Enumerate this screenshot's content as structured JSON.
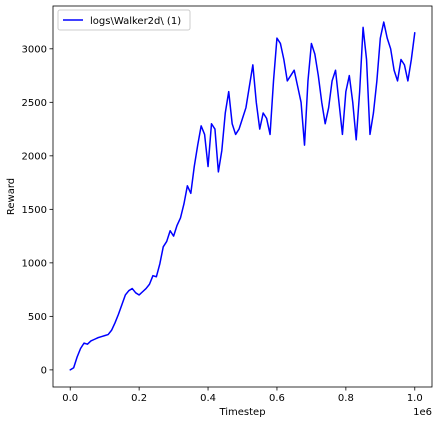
{
  "chart_data": {
    "type": "line",
    "title": "",
    "xlabel": "Timestep",
    "ylabel": "Reward",
    "x_offset_label": "1e6",
    "xlim": [
      -0.05,
      1.05
    ],
    "ylim": [
      -160,
      3400
    ],
    "xticks": [
      0.0,
      0.2,
      0.4,
      0.6,
      0.8,
      1.0
    ],
    "xtick_labels": [
      "0.0",
      "0.2",
      "0.4",
      "0.6",
      "0.8",
      "1.0"
    ],
    "yticks": [
      0,
      500,
      1000,
      1500,
      2000,
      2500,
      3000
    ],
    "ytick_labels": [
      "0",
      "500",
      "1000",
      "1500",
      "2000",
      "2500",
      "3000"
    ],
    "grid": false,
    "legend_position": "top-left",
    "series": [
      {
        "name": "logs\\Walker2d\\ (1)",
        "color": "#0000ff",
        "x": [
          0.0,
          0.01,
          0.02,
          0.03,
          0.04,
          0.05,
          0.06,
          0.07,
          0.08,
          0.09,
          0.1,
          0.11,
          0.12,
          0.13,
          0.14,
          0.15,
          0.16,
          0.17,
          0.18,
          0.19,
          0.2,
          0.21,
          0.22,
          0.23,
          0.24,
          0.25,
          0.26,
          0.27,
          0.28,
          0.29,
          0.3,
          0.31,
          0.32,
          0.33,
          0.34,
          0.35,
          0.36,
          0.37,
          0.38,
          0.39,
          0.4,
          0.41,
          0.42,
          0.43,
          0.44,
          0.45,
          0.46,
          0.47,
          0.48,
          0.49,
          0.5,
          0.51,
          0.52,
          0.53,
          0.54,
          0.55,
          0.56,
          0.57,
          0.58,
          0.59,
          0.6,
          0.61,
          0.62,
          0.63,
          0.64,
          0.65,
          0.66,
          0.67,
          0.68,
          0.69,
          0.7,
          0.71,
          0.72,
          0.73,
          0.74,
          0.75,
          0.76,
          0.77,
          0.78,
          0.79,
          0.8,
          0.81,
          0.82,
          0.83,
          0.84,
          0.85,
          0.86,
          0.87,
          0.88,
          0.89,
          0.9,
          0.91,
          0.92,
          0.93,
          0.94,
          0.95,
          0.96,
          0.97,
          0.98,
          0.99,
          1.0
        ],
        "y": [
          0,
          20,
          120,
          200,
          250,
          240,
          270,
          285,
          300,
          310,
          320,
          330,
          370,
          440,
          520,
          610,
          700,
          740,
          760,
          720,
          700,
          730,
          760,
          800,
          880,
          870,
          990,
          1150,
          1200,
          1300,
          1250,
          1350,
          1420,
          1550,
          1720,
          1650,
          1900,
          2100,
          2280,
          2200,
          1900,
          2300,
          2250,
          1850,
          2050,
          2400,
          2600,
          2300,
          2200,
          2250,
          2350,
          2450,
          2650,
          2850,
          2500,
          2250,
          2400,
          2350,
          2200,
          2700,
          3100,
          3050,
          2900,
          2700,
          2750,
          2800,
          2650,
          2500,
          2100,
          2700,
          3050,
          2950,
          2750,
          2500,
          2300,
          2450,
          2700,
          2800,
          2500,
          2200,
          2600,
          2750,
          2500,
          2150,
          2600,
          3200,
          2900,
          2200,
          2400,
          2700,
          3100,
          3250,
          3100,
          3000,
          2800,
          2700,
          2900,
          2850,
          2700,
          2900,
          3150
        ]
      }
    ]
  }
}
